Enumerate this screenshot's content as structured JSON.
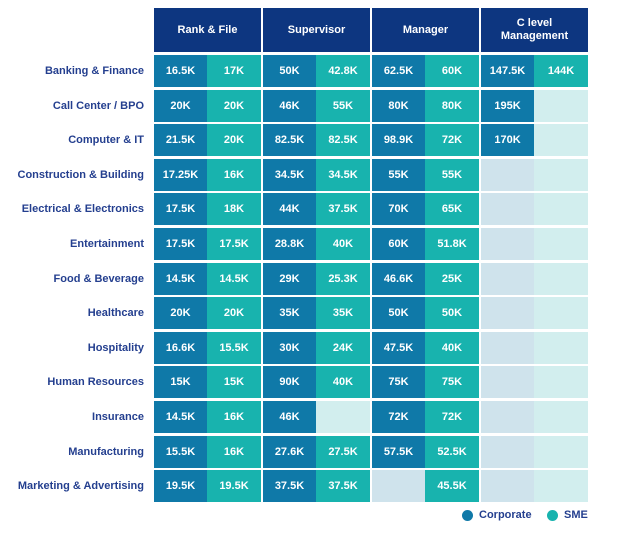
{
  "chart_data": {
    "type": "table",
    "title": "",
    "groups": [
      "Rank & File",
      "Supervisor",
      "Manager",
      "C level Management"
    ],
    "series": [
      {
        "name": "Corporate",
        "color": "#0f79a8"
      },
      {
        "name": "SME",
        "color": "#18b3ae"
      }
    ],
    "rows": [
      {
        "label": "Banking & Finance",
        "values": [
          [
            "16.5K",
            "17K"
          ],
          [
            "50K",
            "42.8K"
          ],
          [
            "62.5K",
            "60K"
          ],
          [
            "147.5K",
            "144K"
          ]
        ]
      },
      {
        "label": "Call Center / BPO",
        "values": [
          [
            "20K",
            "20K"
          ],
          [
            "46K",
            "55K"
          ],
          [
            "80K",
            "80K"
          ],
          [
            "195K",
            ""
          ]
        ]
      },
      {
        "label": "Computer & IT",
        "values": [
          [
            "21.5K",
            "20K"
          ],
          [
            "82.5K",
            "82.5K"
          ],
          [
            "98.9K",
            "72K"
          ],
          [
            "170K",
            ""
          ]
        ]
      },
      {
        "label": "Construction & Building",
        "values": [
          [
            "17.25K",
            "16K"
          ],
          [
            "34.5K",
            "34.5K"
          ],
          [
            "55K",
            "55K"
          ],
          [
            "",
            ""
          ]
        ]
      },
      {
        "label": "Electrical & Electronics",
        "values": [
          [
            "17.5K",
            "18K"
          ],
          [
            "44K",
            "37.5K"
          ],
          [
            "70K",
            "65K"
          ],
          [
            "",
            ""
          ]
        ]
      },
      {
        "label": "Entertainment",
        "values": [
          [
            "17.5K",
            "17.5K"
          ],
          [
            "28.8K",
            "40K"
          ],
          [
            "60K",
            "51.8K"
          ],
          [
            "",
            ""
          ]
        ]
      },
      {
        "label": "Food & Beverage",
        "values": [
          [
            "14.5K",
            "14.5K"
          ],
          [
            "29K",
            "25.3K"
          ],
          [
            "46.6K",
            "25K"
          ],
          [
            "",
            ""
          ]
        ]
      },
      {
        "label": "Healthcare",
        "values": [
          [
            "20K",
            "20K"
          ],
          [
            "35K",
            "35K"
          ],
          [
            "50K",
            "50K"
          ],
          [
            "",
            ""
          ]
        ]
      },
      {
        "label": "Hospitality",
        "values": [
          [
            "16.6K",
            "15.5K"
          ],
          [
            "30K",
            "24K"
          ],
          [
            "47.5K",
            "40K"
          ],
          [
            "",
            ""
          ]
        ]
      },
      {
        "label": "Human Resources",
        "values": [
          [
            "15K",
            "15K"
          ],
          [
            "90K",
            "40K"
          ],
          [
            "75K",
            "75K"
          ],
          [
            "",
            ""
          ]
        ]
      },
      {
        "label": "Insurance",
        "values": [
          [
            "14.5K",
            "16K"
          ],
          [
            "46K",
            ""
          ],
          [
            "72K",
            "72K"
          ],
          [
            "",
            ""
          ]
        ]
      },
      {
        "label": "Manufacturing",
        "values": [
          [
            "15.5K",
            "16K"
          ],
          [
            "27.6K",
            "27.5K"
          ],
          [
            "57.5K",
            "52.5K"
          ],
          [
            "",
            ""
          ]
        ]
      },
      {
        "label": "Marketing & Advertising",
        "values": [
          [
            "19.5K",
            "19.5K"
          ],
          [
            "37.5K",
            "37.5K"
          ],
          [
            "",
            "45.5K"
          ],
          [
            "",
            ""
          ]
        ]
      }
    ],
    "legend": [
      "Corporate",
      "SME"
    ],
    "legend_position": "bottom-right"
  },
  "colors": {
    "header_bg": "#0d3680",
    "corporate": "#0f79a8",
    "sme": "#18b3ae",
    "corporate_empty": "#cfe3ec",
    "sme_empty": "#d2eeee",
    "label_text": "#243f8f"
  }
}
